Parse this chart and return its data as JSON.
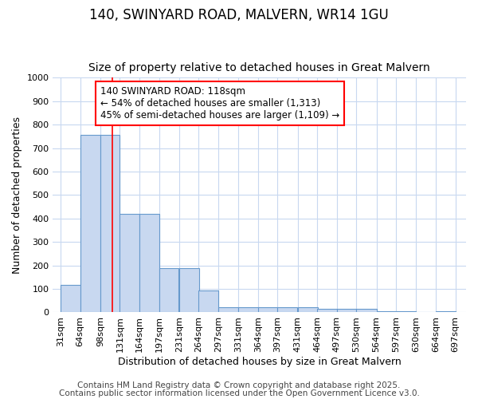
{
  "title1": "140, SWINYARD ROAD, MALVERN, WR14 1GU",
  "title2": "Size of property relative to detached houses in Great Malvern",
  "xlabel": "Distribution of detached houses by size in Great Malvern",
  "ylabel": "Number of detached properties",
  "bar_left_edges": [
    31,
    64,
    98,
    131,
    164,
    197,
    231,
    264,
    297,
    331,
    364,
    397,
    431,
    464,
    497,
    530,
    564,
    597,
    630,
    664
  ],
  "bar_widths": [
    33,
    34,
    33,
    33,
    33,
    33,
    34,
    33,
    33,
    34,
    33,
    33,
    34,
    33,
    33,
    34,
    33,
    33,
    34,
    33
  ],
  "bar_heights": [
    118,
    758,
    758,
    420,
    420,
    188,
    188,
    95,
    22,
    22,
    22,
    22,
    22,
    15,
    15,
    15,
    5,
    5,
    0,
    5
  ],
  "tick_labels": [
    "31sqm",
    "64sqm",
    "98sqm",
    "131sqm",
    "164sqm",
    "197sqm",
    "231sqm",
    "264sqm",
    "297sqm",
    "331sqm",
    "364sqm",
    "397sqm",
    "431sqm",
    "464sqm",
    "497sqm",
    "530sqm",
    "564sqm",
    "597sqm",
    "630sqm",
    "664sqm",
    "697sqm"
  ],
  "tick_positions": [
    31,
    64,
    98,
    131,
    164,
    197,
    231,
    264,
    297,
    331,
    364,
    397,
    431,
    464,
    497,
    530,
    564,
    597,
    630,
    664,
    697
  ],
  "bar_color": "#c8d8f0",
  "bar_edge_color": "#6699cc",
  "red_line_x": 118,
  "ylim": [
    0,
    1000
  ],
  "xlim": [
    18,
    715
  ],
  "yticks": [
    0,
    100,
    200,
    300,
    400,
    500,
    600,
    700,
    800,
    900,
    1000
  ],
  "annotation_line1": "140 SWINYARD ROAD: 118sqm",
  "annotation_line2": "← 54% of detached houses are smaller (1,313)",
  "annotation_line3": "45% of semi-detached houses are larger (1,109) →",
  "footer1": "Contains HM Land Registry data © Crown copyright and database right 2025.",
  "footer2": "Contains public sector information licensed under the Open Government Licence v3.0.",
  "bg_color": "#ffffff",
  "grid_color": "#c8d8f0",
  "title1_fontsize": 12,
  "title2_fontsize": 10,
  "xlabel_fontsize": 9,
  "ylabel_fontsize": 9,
  "tick_fontsize": 8,
  "annotation_fontsize": 8.5,
  "footer_fontsize": 7.5
}
